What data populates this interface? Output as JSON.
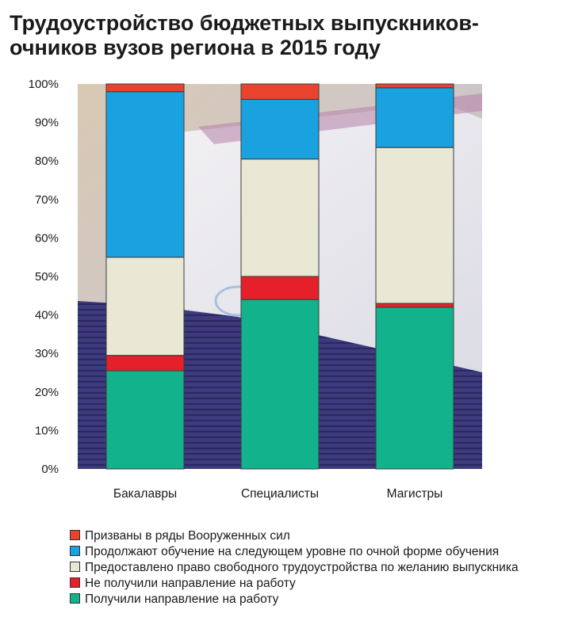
{
  "chart_data": {
    "type": "bar",
    "stacked": true,
    "title_lines": [
      "Трудоустройство бюджетных выпускников-",
      "очников вузов региона в 2015 году"
    ],
    "categories": [
      "Бакалавры",
      "Специалисты",
      "Магистры"
    ],
    "yticks": [
      "0%",
      "10%",
      "20%",
      "30%",
      "40%",
      "50%",
      "60%",
      "70%",
      "80%",
      "90%",
      "100%"
    ],
    "ylim": [
      0,
      100
    ],
    "grid": false,
    "legend_position": "bottom",
    "series": [
      {
        "name": "Получили направление на работу",
        "color": "#12b38c",
        "values": [
          25.5,
          44,
          42
        ]
      },
      {
        "name": "Не получили направление на работу",
        "color": "#e5202a",
        "values": [
          4,
          6,
          1
        ]
      },
      {
        "name": "Предоставлено право свободного трудоустройства по желанию выпускника",
        "color": "#e8e8d5",
        "values": [
          25.5,
          30.5,
          40.5
        ]
      },
      {
        "name": "Продолжают обучение на следующем уровне по очной форме обучения",
        "color": "#1aa2e0",
        "values": [
          43,
          15.5,
          15.5
        ]
      },
      {
        "name": "Призваны в ряды Вооруженных сил",
        "color": "#e9432e",
        "values": [
          2,
          4,
          1
        ]
      }
    ]
  }
}
